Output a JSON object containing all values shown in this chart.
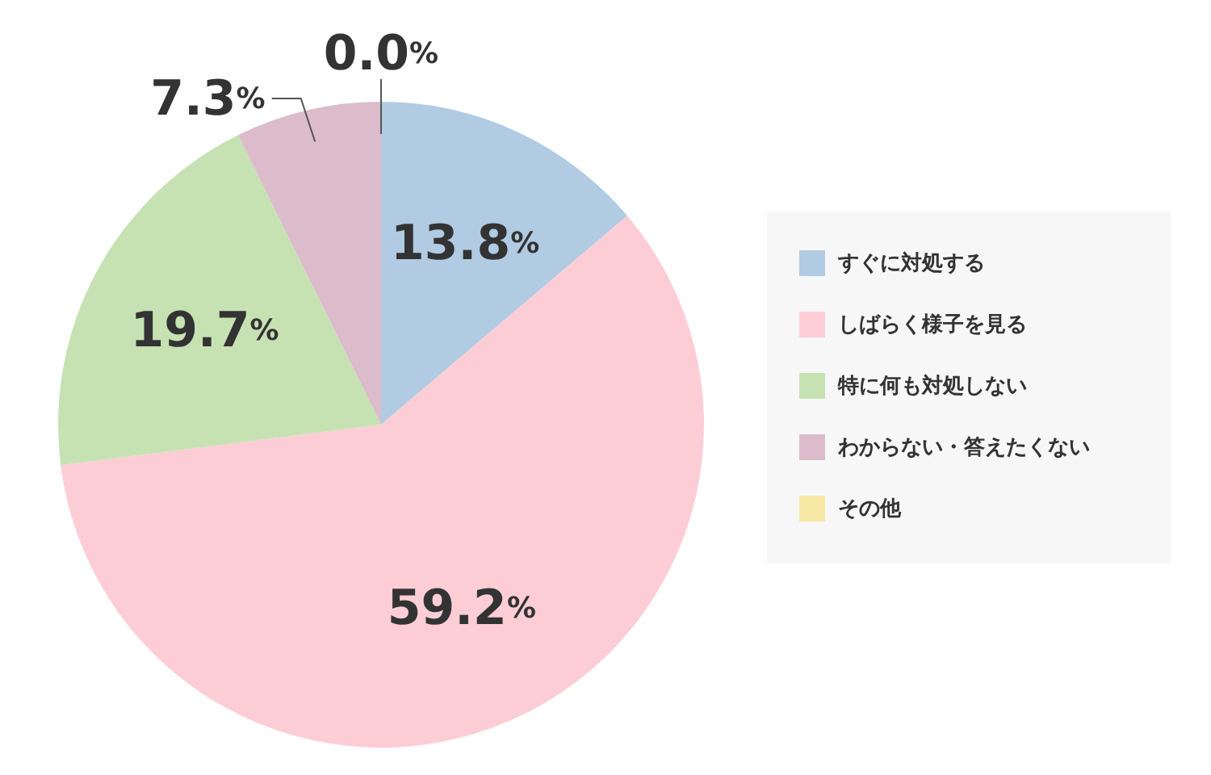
{
  "chart_data": {
    "type": "pie",
    "categories": [
      "すぐに対処する",
      "しばらく様子を見る",
      "特に何も対処しない",
      "わからない・答えたくない",
      "その他"
    ],
    "values": [
      13.8,
      59.2,
      19.7,
      7.3,
      0.0
    ],
    "value_labels": [
      "13.8%",
      "59.2%",
      "19.7%",
      "7.3%",
      "0.0%"
    ],
    "colors": [
      "#b0cbe2",
      "#fdcdd5",
      "#c6e2b3",
      "#dcbccb",
      "#f6e7a5"
    ],
    "legend": "right"
  }
}
